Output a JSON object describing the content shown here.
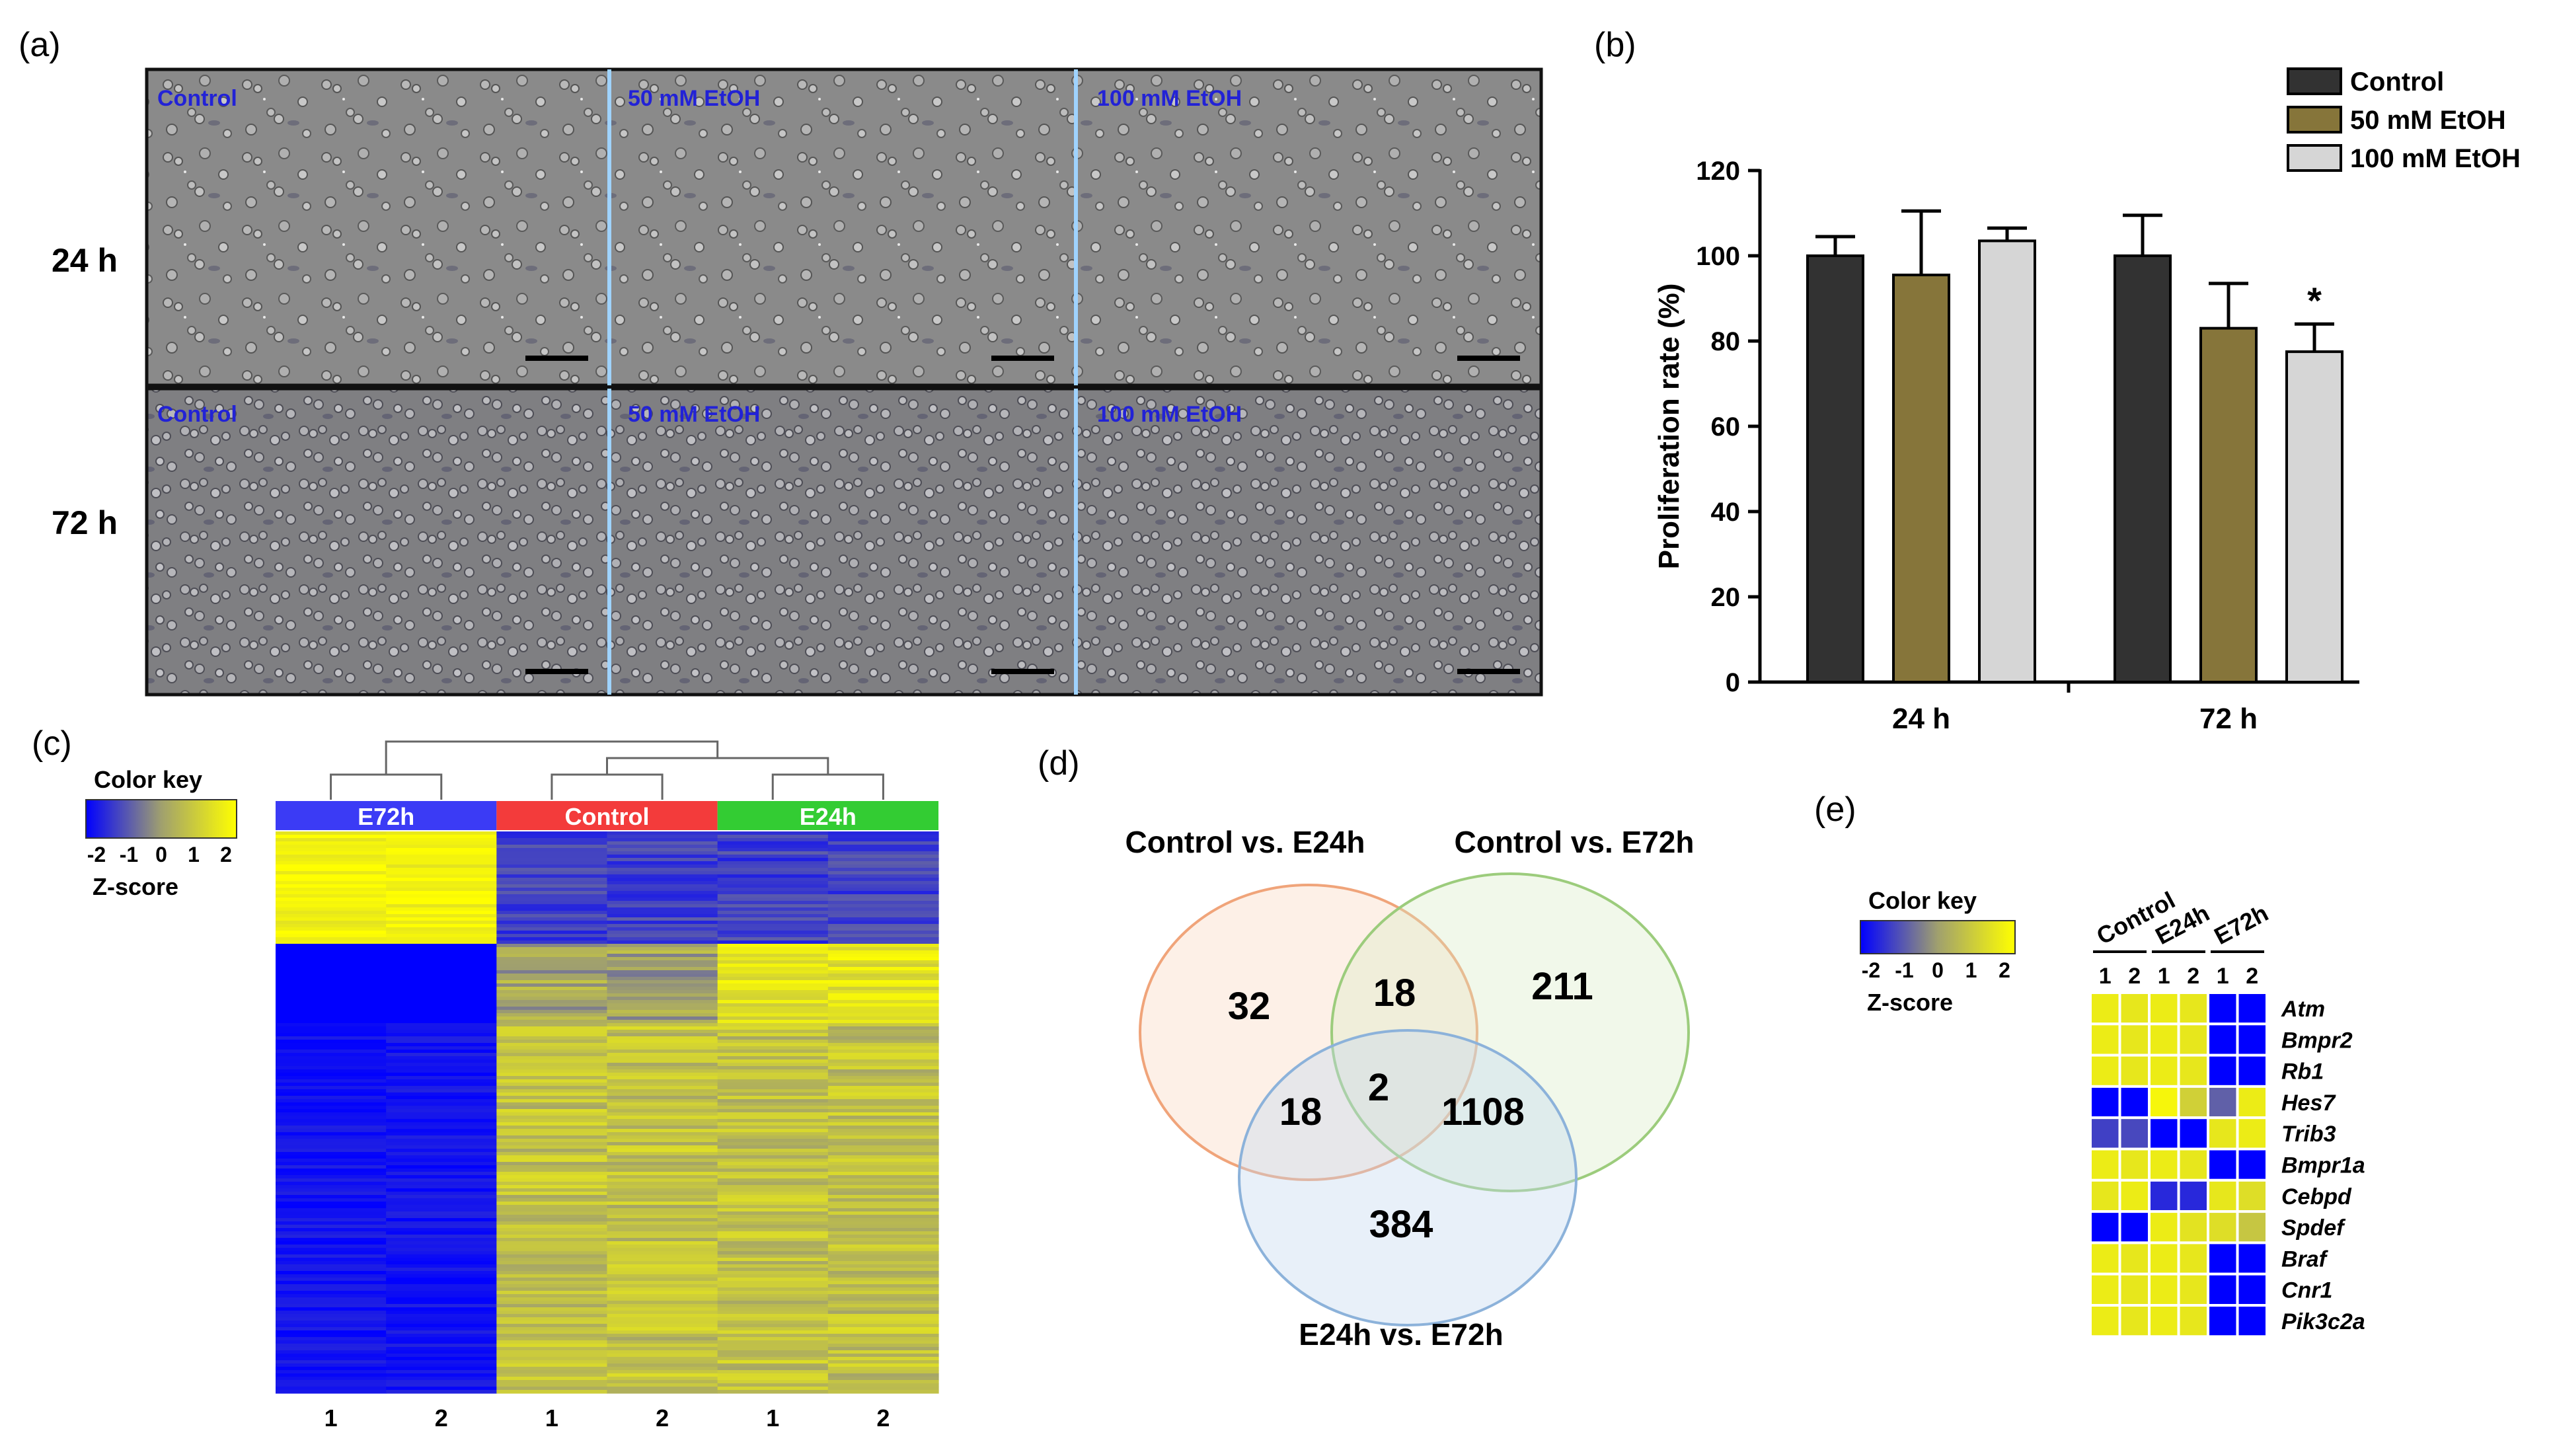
{
  "panel_labels": {
    "a": "(a)",
    "b": "(b)",
    "c": "(c)",
    "d": "(d)",
    "e": "(e)"
  },
  "panel_a": {
    "row_labels": [
      "24 h",
      "72 h"
    ],
    "conditions": [
      "Control",
      "50 mM EtOH",
      "100 mM EtOH"
    ]
  },
  "chart_data": {
    "type": "bar",
    "categories": [
      "24 h",
      "72 h"
    ],
    "series": [
      {
        "name": "Control",
        "values": [
          100,
          100
        ],
        "errors": [
          4.5,
          9.5
        ],
        "color": "#323232"
      },
      {
        "name": "50 mM EtOH",
        "values": [
          95.5,
          83
        ],
        "errors": [
          15,
          10.5
        ],
        "color": "#86753a"
      },
      {
        "name": "100 mM EtOH",
        "values": [
          103.5,
          77.5
        ],
        "errors": [
          3,
          6.5
        ],
        "color": "#d6d6d6"
      }
    ],
    "annotations": [
      {
        "category": "72 h",
        "series": "100 mM EtOH",
        "text": "*"
      }
    ],
    "ylabel": "Proliferation rate (%)",
    "xlabel": "",
    "ylim": [
      0,
      120
    ],
    "yticks": [
      "0",
      "20",
      "40",
      "60",
      "80",
      "100",
      "120"
    ],
    "legend_position": "top-right"
  },
  "panel_c": {
    "color_key_title": "Color key",
    "color_key_ticks": [
      "-2",
      "-1",
      "0",
      "1",
      "2"
    ],
    "color_key_label": "Z-score",
    "groups": [
      {
        "name": "E72h",
        "color": "#3b3bf5"
      },
      {
        "name": "Control",
        "color": "#f33b3b"
      },
      {
        "name": "E24h",
        "color": "#33cc33"
      }
    ],
    "column_labels": [
      "1",
      "2",
      "1",
      "2",
      "1",
      "2"
    ]
  },
  "panel_d": {
    "sets": [
      "Control vs. E24h",
      "Control vs. E72h",
      "E24h vs. E72h"
    ],
    "counts": {
      "only_a": "32",
      "only_b": "211",
      "only_c": "384",
      "ab": "18",
      "ac": "18",
      "bc": "1108",
      "abc": "2"
    }
  },
  "panel_e": {
    "color_key_title": "Color key",
    "color_key_ticks": [
      "-2",
      "-1",
      "0",
      "1",
      "2"
    ],
    "color_key_label": "Z-score",
    "groups": [
      "Control",
      "E24h",
      "E72h"
    ],
    "column_labels": [
      "1",
      "2",
      "1",
      "2",
      "1",
      "2"
    ],
    "genes": [
      "Atm",
      "Bmpr2",
      "Rb1",
      "Hes7",
      "Trib3",
      "Bmpr1a",
      "Cebpd",
      "Spdef",
      "Braf",
      "Cnr1",
      "Pik3c2a"
    ],
    "zscores": [
      [
        1.6,
        1.5,
        1.6,
        1.5,
        -2,
        -2
      ],
      [
        1.6,
        1.5,
        1.6,
        1.5,
        -2,
        -2
      ],
      [
        1.6,
        1.5,
        1.6,
        1.5,
        -2,
        -2
      ],
      [
        -2,
        -2,
        1.8,
        1.0,
        -0.8,
        1.6
      ],
      [
        -1.2,
        -1.1,
        -2,
        -2,
        1.5,
        1.6
      ],
      [
        1.6,
        1.5,
        1.6,
        1.5,
        -2,
        -2
      ],
      [
        1.5,
        1.6,
        -1.5,
        -1.5,
        1.5,
        1.3
      ],
      [
        -2,
        -2,
        1.6,
        1.4,
        1.3,
        0.8
      ],
      [
        1.6,
        1.5,
        1.6,
        1.5,
        -2,
        -2
      ],
      [
        1.6,
        1.5,
        1.6,
        1.5,
        -2,
        -2
      ],
      [
        1.6,
        1.5,
        1.6,
        1.5,
        -2,
        -2
      ]
    ]
  }
}
